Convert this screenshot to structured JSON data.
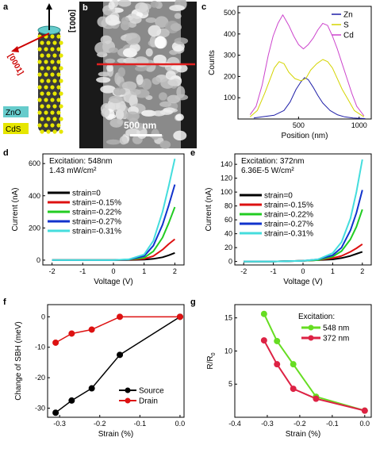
{
  "panel_a": {
    "letter": "a",
    "axis_c": "[0001]",
    "axis_a": "[0001]",
    "labels": [
      "ZnO",
      "CdS"
    ],
    "colors": {
      "zno": "#66cccc",
      "cds": "#e6e600",
      "core": "#333333",
      "arrow": "#cc0000"
    }
  },
  "panel_b": {
    "letter": "b",
    "scale_bar": "500 nm"
  },
  "panel_letters": {
    "c": "c",
    "d": "d",
    "e": "e",
    "f": "f",
    "g": "g"
  },
  "chart_data": [
    {
      "panel": "c",
      "type": "line",
      "xlabel": "Position (nm)",
      "ylabel": "Counts",
      "xlim": [
        0,
        1100
      ],
      "ylim": [
        0,
        530
      ],
      "xticks": [
        500,
        1000
      ],
      "yticks": [
        100,
        200,
        300,
        400,
        500
      ],
      "legend": "top-right",
      "series": [
        {
          "name": "Zn",
          "color": "#1f1fa8",
          "x": [
            130,
            200,
            300,
            380,
            430,
            480,
            520,
            550,
            580,
            620,
            660,
            700,
            760,
            820,
            880,
            950,
            1050
          ],
          "y": [
            5,
            10,
            18,
            40,
            80,
            140,
            175,
            195,
            185,
            150,
            110,
            75,
            40,
            20,
            10,
            5,
            2
          ]
        },
        {
          "name": "S",
          "color": "#d4d400",
          "x": [
            100,
            160,
            220,
            260,
            300,
            340,
            380,
            420,
            470,
            520,
            560,
            600,
            650,
            700,
            740,
            780,
            820,
            860,
            900,
            960,
            1040
          ],
          "y": [
            10,
            40,
            120,
            180,
            240,
            270,
            260,
            220,
            190,
            180,
            190,
            230,
            260,
            280,
            270,
            240,
            190,
            140,
            100,
            40,
            10
          ]
        },
        {
          "name": "Cd",
          "color": "#cc44cc",
          "x": [
            100,
            150,
            200,
            250,
            290,
            330,
            370,
            420,
            460,
            500,
            540,
            580,
            620,
            660,
            700,
            740,
            780,
            820,
            860,
            900,
            940,
            980,
            1040
          ],
          "y": [
            20,
            60,
            160,
            300,
            390,
            450,
            490,
            440,
            390,
            350,
            330,
            350,
            380,
            420,
            450,
            440,
            390,
            330,
            260,
            190,
            120,
            60,
            15
          ]
        }
      ]
    },
    {
      "panel": "d",
      "type": "line",
      "xlabel": "Voltage (V)",
      "ylabel": "Current (nA)",
      "annotation": [
        "Excitation: 548nm",
        "1.43 mW/cm²"
      ],
      "xlim": [
        -2.3,
        2.3
      ],
      "ylim": [
        -30,
        660
      ],
      "xticks": [
        -2,
        -1,
        0,
        1,
        2
      ],
      "yticks": [
        0,
        200,
        400,
        600
      ],
      "legend": "left",
      "series": [
        {
          "name": "strain=0",
          "color": "#000000",
          "x": [
            -2,
            -1,
            0,
            0.5,
            1,
            1.3,
            1.6,
            1.8,
            2.0
          ],
          "y": [
            0,
            0,
            0,
            1,
            3,
            8,
            18,
            30,
            45
          ]
        },
        {
          "name": "strain=-0.15%",
          "color": "#dd1111",
          "x": [
            -2,
            -1,
            0,
            0.5,
            1,
            1.3,
            1.6,
            1.8,
            2.0
          ],
          "y": [
            0,
            0,
            0,
            2,
            8,
            25,
            65,
            100,
            130
          ]
        },
        {
          "name": "strain=-0.22%",
          "color": "#22cc22",
          "x": [
            -2,
            -1,
            0,
            0.5,
            1,
            1.3,
            1.6,
            1.8,
            2.0
          ],
          "y": [
            0,
            0,
            0,
            3,
            15,
            55,
            140,
            230,
            330
          ]
        },
        {
          "name": "strain=-0.27%",
          "color": "#1133cc",
          "x": [
            -2,
            -1,
            0,
            0.5,
            1,
            1.3,
            1.6,
            1.8,
            2.0
          ],
          "y": [
            0,
            0,
            0,
            4,
            25,
            90,
            220,
            340,
            470
          ]
        },
        {
          "name": "strain=-0.31%",
          "color": "#44dddd",
          "x": [
            -2,
            -1,
            0,
            0.5,
            1,
            1.3,
            1.6,
            1.8,
            2.0
          ],
          "y": [
            0,
            0,
            0,
            5,
            35,
            120,
            300,
            460,
            630
          ]
        }
      ]
    },
    {
      "panel": "e",
      "type": "line",
      "xlabel": "Voltage (V)",
      "ylabel": "Current (nA)",
      "annotation": [
        "Excitation: 372nm",
        "6.36E-5 W/cm²"
      ],
      "xlim": [
        -2.3,
        2.3
      ],
      "ylim": [
        -5,
        155
      ],
      "xticks": [
        -2,
        -1,
        0,
        1,
        2
      ],
      "yticks": [
        0,
        20,
        40,
        60,
        80,
        100,
        120,
        140
      ],
      "legend": "left",
      "series": [
        {
          "name": "strain=0",
          "color": "#000000",
          "x": [
            -2,
            -1,
            0,
            0.5,
            1,
            1.3,
            1.6,
            1.8,
            2.0
          ],
          "y": [
            0,
            0,
            1,
            2,
            3,
            5,
            8,
            11,
            14
          ]
        },
        {
          "name": "strain=-0.15%",
          "color": "#dd1111",
          "x": [
            -2,
            -1,
            0,
            0.5,
            1,
            1.3,
            1.6,
            1.8,
            2.0
          ],
          "y": [
            0,
            0,
            1,
            2,
            5,
            8,
            14,
            19,
            25
          ]
        },
        {
          "name": "strain=-0.22%",
          "color": "#22cc22",
          "x": [
            -2,
            -1,
            0,
            0.5,
            1,
            1.3,
            1.6,
            1.8,
            2.0
          ],
          "y": [
            0,
            0,
            1,
            2,
            7,
            15,
            32,
            50,
            75
          ]
        },
        {
          "name": "strain=-0.27%",
          "color": "#1133cc",
          "x": [
            -2,
            -1,
            0,
            0.5,
            1,
            1.3,
            1.6,
            1.8,
            2.0
          ],
          "y": [
            0,
            0,
            1,
            3,
            9,
            20,
            45,
            70,
            103
          ]
        },
        {
          "name": "strain=-0.31%",
          "color": "#44dddd",
          "x": [
            -2,
            -1,
            0,
            0.5,
            1,
            1.3,
            1.6,
            1.8,
            2.0
          ],
          "y": [
            0,
            0,
            1,
            3,
            12,
            28,
            62,
            100,
            147
          ]
        }
      ]
    },
    {
      "panel": "f",
      "type": "line",
      "xlabel": "Strain (%)",
      "ylabel": "Change of SBH (meV)",
      "xlim": [
        -0.33,
        0.01
      ],
      "ylim": [
        -33,
        4
      ],
      "xticks": [
        -0.3,
        -0.2,
        -0.1,
        0.0
      ],
      "yticks": [
        -30,
        -20,
        -10,
        0
      ],
      "legend": "bottom-right",
      "series": [
        {
          "name": "Source",
          "color": "#000000",
          "x": [
            -0.31,
            -0.27,
            -0.22,
            -0.15,
            0.0
          ],
          "y": [
            -31.5,
            -27.5,
            -23.5,
            -12.5,
            0
          ]
        },
        {
          "name": "Drain",
          "color": "#dd1111",
          "x": [
            -0.31,
            -0.27,
            -0.22,
            -0.15,
            0.0
          ],
          "y": [
            -8.5,
            -5.5,
            -4.2,
            0,
            0
          ]
        }
      ]
    },
    {
      "panel": "g",
      "type": "line",
      "xlabel": "Strain (%)",
      "ylabel": "R/R",
      "ylabel_sub": "0",
      "legend_title": "Excitation:",
      "xlim": [
        -0.4,
        0.02
      ],
      "ylim": [
        0,
        17
      ],
      "xticks": [
        -0.4,
        -0.3,
        -0.2,
        -0.1,
        0.0
      ],
      "yticks": [
        5,
        10,
        15
      ],
      "legend": "top-right",
      "series": [
        {
          "name": "548 nm",
          "color": "#66dd22",
          "x": [
            -0.31,
            -0.27,
            -0.22,
            -0.15,
            0.0
          ],
          "y": [
            15.6,
            11.5,
            8.0,
            3.1,
            1.0
          ]
        },
        {
          "name": "372 nm",
          "color": "#dd2244",
          "x": [
            -0.31,
            -0.27,
            -0.22,
            -0.15,
            0.0
          ],
          "y": [
            11.6,
            8.0,
            4.3,
            2.8,
            1.0
          ]
        }
      ]
    }
  ]
}
